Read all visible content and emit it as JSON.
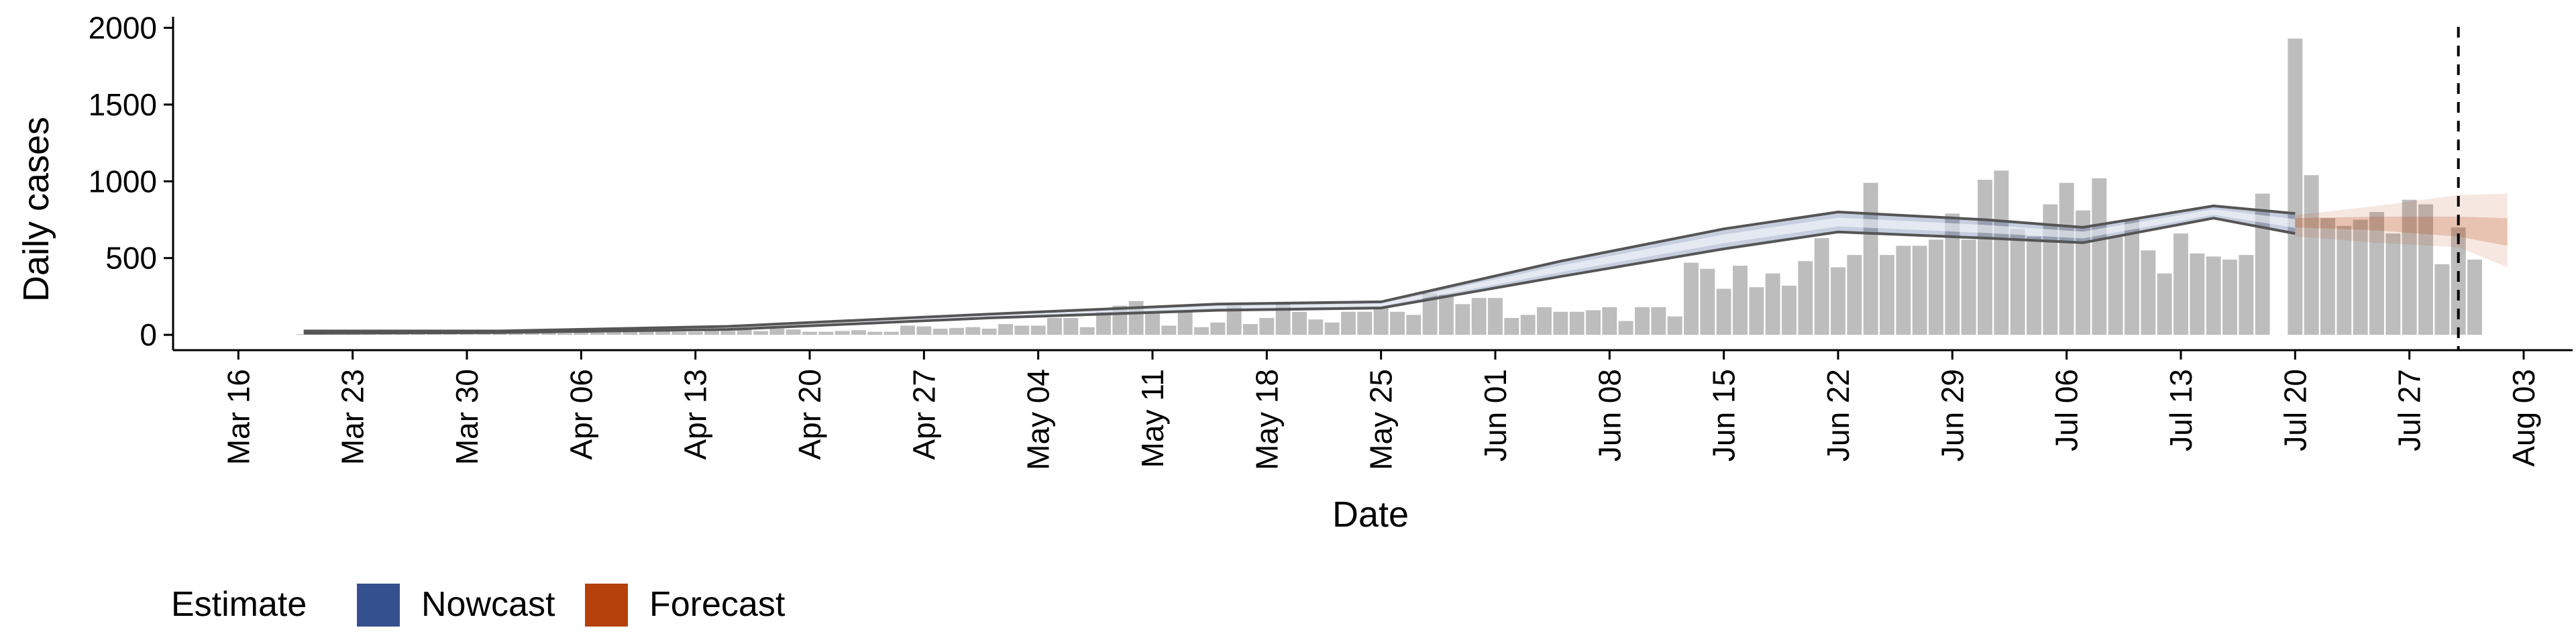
{
  "chart_data": {
    "type": "bar",
    "xlabel": "Date",
    "ylabel": "Daily cases",
    "ylim": [
      -100,
      2050
    ],
    "yticks": [
      0,
      500,
      1000,
      1500,
      2000
    ],
    "xticks": [
      "2020-03-16",
      "2020-03-23",
      "2020-03-30",
      "2020-04-06",
      "2020-04-13",
      "2020-04-20",
      "2020-04-27",
      "2020-05-04",
      "2020-05-11",
      "2020-05-18",
      "2020-05-25",
      "2020-06-01",
      "2020-06-08",
      "2020-06-15",
      "2020-06-22",
      "2020-06-29",
      "2020-07-06",
      "2020-07-13",
      "2020-07-20",
      "2020-07-27",
      "2020-08-03"
    ],
    "xtick_labels": [
      "Mar 16",
      "Mar 23",
      "Mar 30",
      "Apr 06",
      "Apr 13",
      "Apr 20",
      "Apr 27",
      "May 04",
      "May 11",
      "May 18",
      "May 25",
      "Jun 01",
      "Jun 08",
      "Jun 15",
      "Jun 22",
      "Jun 29",
      "Jul 06",
      "Jul 13",
      "Jul 20",
      "Jul 27",
      "Aug 03"
    ],
    "xlim": [
      "2020-03-12",
      "2020-08-06"
    ],
    "grid": false,
    "legend_position": "bottom-left",
    "vline_date": "2020-07-30",
    "bars": {
      "color": "#bdbdbd",
      "start_date": "2020-03-20",
      "values": [
        5,
        5,
        8,
        10,
        5,
        8,
        10,
        20,
        15,
        10,
        8,
        30,
        15,
        20,
        10,
        15,
        10,
        20,
        15,
        25,
        20,
        25,
        25,
        20,
        20,
        25,
        25,
        40,
        25,
        40,
        35,
        20,
        20,
        25,
        30,
        20,
        20,
        60,
        55,
        40,
        45,
        50,
        40,
        70,
        60,
        60,
        110,
        110,
        50,
        150,
        190,
        220,
        140,
        60,
        160,
        50,
        80,
        190,
        70,
        110,
        200,
        150,
        100,
        80,
        150,
        150,
        180,
        150,
        130,
        270,
        260,
        200,
        240,
        240,
        110,
        130,
        180,
        150,
        150,
        160,
        180,
        90,
        180,
        180,
        120,
        470,
        430,
        300,
        450,
        310,
        400,
        320,
        480,
        630,
        440,
        520,
        990,
        520,
        580,
        580,
        620,
        790,
        620,
        1010,
        1070,
        690,
        640,
        850,
        990,
        810,
        1020,
        640,
        750,
        550,
        400,
        660,
        530,
        510,
        490,
        520,
        920,
        0,
        1930,
        1040,
        760,
        710,
        750,
        800,
        660,
        880,
        850,
        460,
        700,
        490
      ]
    },
    "nowcast": {
      "name": "Nowcast",
      "color": "#34508e",
      "x": [
        "2020-03-20",
        "2020-04-01",
        "2020-04-15",
        "2020-05-01",
        "2020-05-15",
        "2020-05-25",
        "2020-06-05",
        "2020-06-15",
        "2020-06-22",
        "2020-07-01",
        "2020-07-07",
        "2020-07-15",
        "2020-07-20"
      ],
      "lower": [
        10,
        15,
        35,
        110,
        160,
        175,
        380,
        560,
        670,
        630,
        600,
        760,
        660
      ],
      "upper": [
        25,
        25,
        55,
        135,
        200,
        215,
        480,
        690,
        800,
        750,
        700,
        840,
        790
      ]
    },
    "forecast": {
      "name": "Forecast",
      "color": "#b5400a",
      "x": [
        "2020-07-20",
        "2020-07-25",
        "2020-07-30",
        "2020-08-02"
      ],
      "lower": [
        640,
        600,
        570,
        440
      ],
      "upper": [
        780,
        840,
        910,
        920
      ],
      "inner_lower": [
        700,
        680,
        640,
        580
      ],
      "inner_upper": [
        760,
        770,
        770,
        760
      ]
    },
    "legend": {
      "title": "Estimate",
      "items": [
        {
          "label": "Nowcast",
          "color": "#34508e"
        },
        {
          "label": "Forecast",
          "color": "#b5400a"
        }
      ]
    }
  }
}
